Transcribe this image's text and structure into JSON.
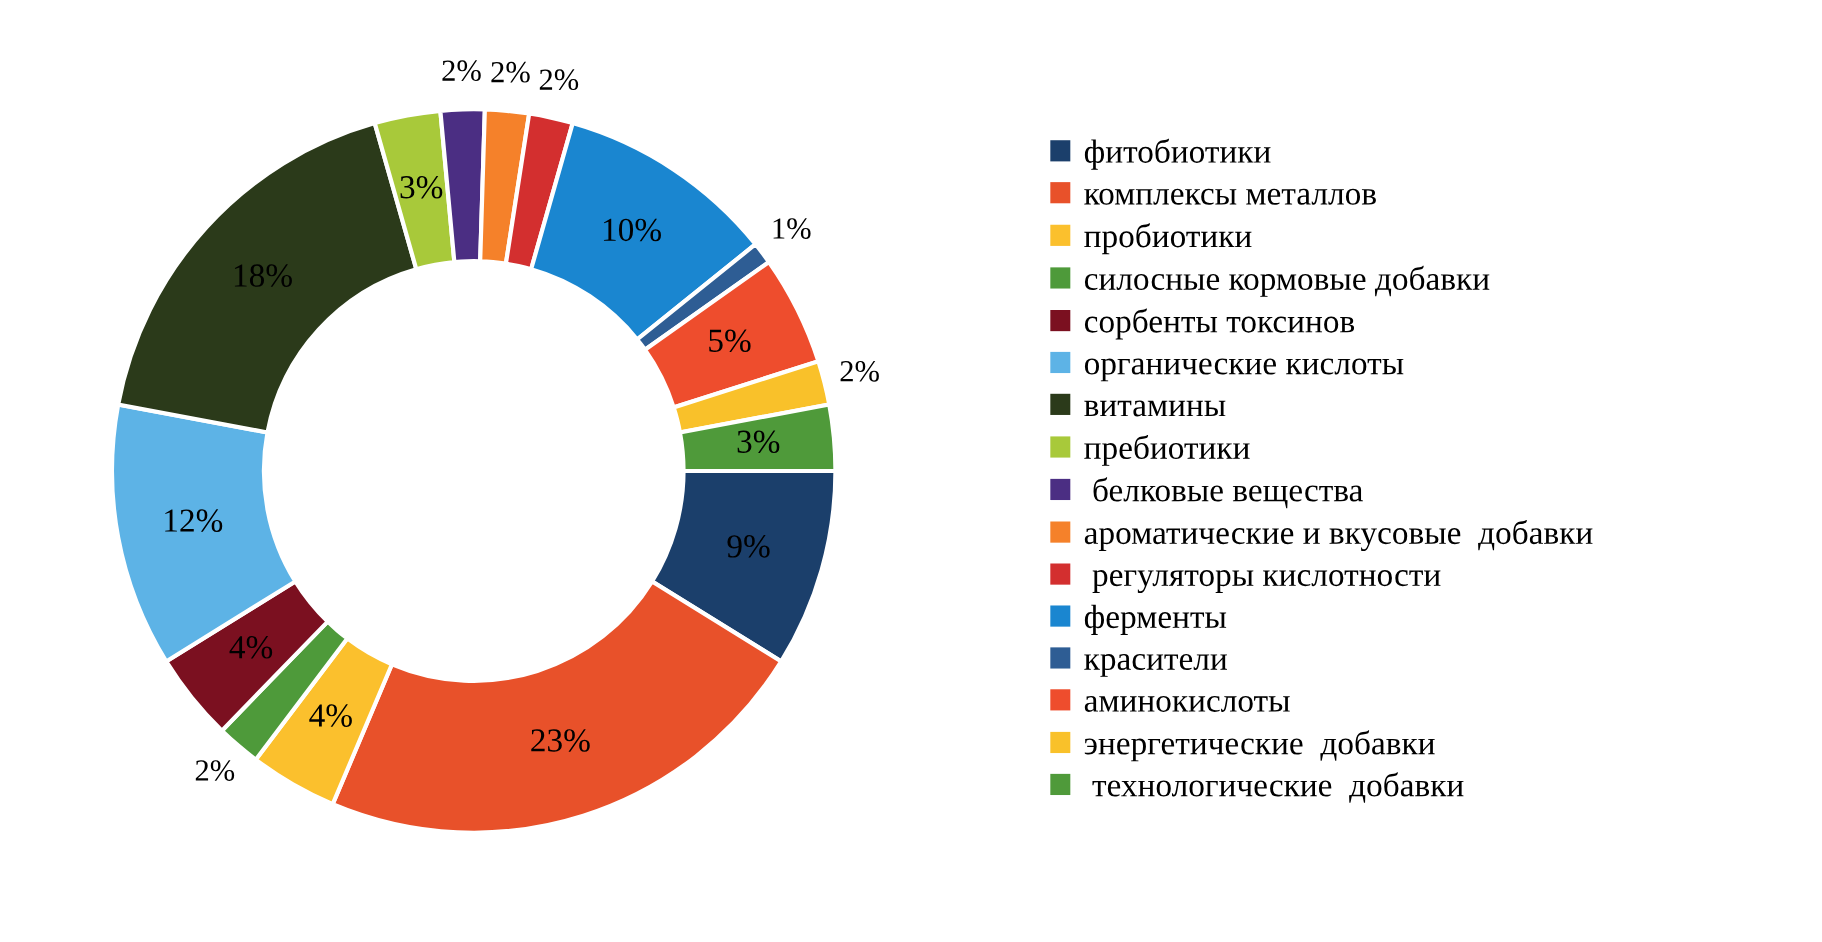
{
  "chart_data": {
    "type": "donut",
    "categories": [
      "фитобиотики",
      "комплексы металлов",
      "пробиотики",
      "силосные кормовые добавки",
      "сорбенты токсинов",
      "органические кислоты",
      "витамины",
      "пребиотики",
      " белковые вещества",
      "ароматические и вкусовые  добавки",
      " регуляторы кислотности",
      "ферменты",
      "красители",
      "аминокислоты",
      "энергетические  добавки",
      " технологические  добавки"
    ],
    "values": [
      9,
      23,
      4,
      2,
      4,
      12,
      18,
      3,
      2,
      2,
      2,
      10,
      1,
      5,
      2,
      3
    ],
    "colors": [
      "#1b3f6b",
      "#e8512a",
      "#fbc02d",
      "#4e9a3a",
      "#7b1020",
      "#5db3e6",
      "#2b3a1a",
      "#a8c93a",
      "#4b2e83",
      "#f5812a",
      "#d32f2f",
      "#1a86d0",
      "#2e5d94",
      "#ee4d2d",
      "#f9c12a",
      "#4f9a3a"
    ],
    "value_labels": [
      "9%",
      "23%",
      "4%",
      "2%",
      "4%",
      "12%",
      "18%",
      "3%",
      "2%",
      "2%",
      "2%",
      "10%",
      "1%",
      "5%",
      "2%",
      "3%"
    ],
    "legend": "right"
  }
}
